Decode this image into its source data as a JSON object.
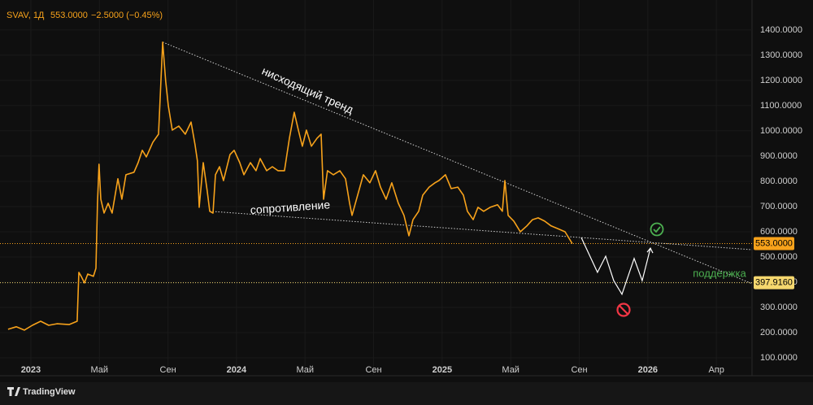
{
  "chart_data": {
    "type": "line",
    "header": {
      "symbol": "SVAV, 1Д",
      "close": "553.0000",
      "change": "−2.5000 (−0.45%)"
    },
    "x": [
      -1.33,
      -0.85,
      -0.38,
      0.09,
      0.57,
      1.04,
      1.52,
      2.23,
      2.7,
      2.8,
      2.94,
      3.13,
      3.32,
      3.65,
      3.8,
      3.89,
      3.98,
      4.08,
      4.27,
      4.51,
      4.74,
      5.08,
      5.31,
      5.55,
      6.02,
      6.26,
      6.5,
      6.74,
      7.12,
      7.45,
      7.69,
      7.87,
      8.02,
      8.25,
      8.63,
      9.01,
      9.35,
      9.58,
      9.72,
      9.82,
      10.06,
      10.29,
      10.44,
      10.63,
      10.77,
      11.01,
      11.24,
      11.62,
      11.86,
      12.19,
      12.43,
      12.81,
      13.14,
      13.38,
      13.76,
      14.09,
      14.42,
      14.8,
      15.09,
      15.37,
      15.61,
      15.84,
      16.08,
      16.37,
      16.7,
      16.94,
      17.08,
      17.31,
      17.65,
      18.03,
      18.36,
      18.6,
      18.74,
      19.07,
      19.4,
      19.78,
      20.11,
      20.4,
      20.73,
      21.06,
      21.44,
      21.77,
      22.06,
      22.3,
      22.63,
      22.87,
      23.24,
      23.58,
      23.81,
      24.19,
      24.53,
      24.91,
      25.24,
      25.47,
      25.81,
      26.09,
      26.42,
      26.8,
      27.23,
      27.51,
      27.66,
      27.85,
      28.18,
      28.56,
      28.94,
      29.27,
      29.6,
      29.98,
      30.36,
      30.83,
      31.17,
      31.59
    ],
    "series": [
      {
        "color": "#f7a21b",
        "values": [
          213,
          223,
          210,
          229,
          245,
          229,
          235,
          232,
          245,
          439,
          423,
          397,
          432,
          423,
          455,
          713,
          868,
          729,
          674,
          713,
          674,
          810,
          729,
          826,
          836,
          874,
          923,
          897,
          955,
          987,
          1352,
          1197,
          1100,
          1003,
          1019,
          987,
          1035,
          945,
          881,
          697,
          874,
          761,
          681,
          674,
          826,
          858,
          803,
          906,
          923,
          874,
          826,
          874,
          842,
          890,
          842,
          858,
          842,
          842,
          971,
          1074,
          1003,
          939,
          1003,
          939,
          971,
          987,
          729,
          842,
          826,
          842,
          810,
          713,
          665,
          745,
          826,
          794,
          842,
          777,
          729,
          794,
          713,
          665,
          584,
          648,
          681,
          745,
          777,
          794,
          803,
          826,
          771,
          777,
          745,
          681,
          648,
          697,
          681,
          697,
          707,
          681,
          803,
          665,
          642,
          600,
          623,
          648,
          655,
          642,
          623,
          610,
          600,
          553
        ]
      }
    ],
    "xlim": [
      -1.8,
      42.08
    ],
    "ylim": [
      29,
      1519
    ],
    "xticks": [
      {
        "value": 0,
        "label": "2023"
      },
      {
        "value": 4,
        "label": "Май"
      },
      {
        "value": 8,
        "label": "Сен"
      },
      {
        "value": 12,
        "label": "2024"
      },
      {
        "value": 16,
        "label": "Май"
      },
      {
        "value": 20,
        "label": "Сен"
      },
      {
        "value": 24,
        "label": "2025"
      },
      {
        "value": 28,
        "label": "Май"
      },
      {
        "value": 32,
        "label": "Сен"
      },
      {
        "value": 36,
        "label": "2026"
      },
      {
        "value": 40,
        "label": "Апр"
      }
    ],
    "yticks": [
      {
        "value": 100,
        "label": "100.0000"
      },
      {
        "value": 200,
        "label": "200.0000"
      },
      {
        "value": 300,
        "label": "300.0000"
      },
      {
        "value": 400,
        "label": "400.0000"
      },
      {
        "value": 500,
        "label": "500.0000"
      },
      {
        "value": 600,
        "label": "600.0000"
      },
      {
        "value": 700,
        "label": "700.0000"
      },
      {
        "value": 800,
        "label": "800.0000"
      },
      {
        "value": 900,
        "label": "900.0000"
      },
      {
        "value": 1000,
        "label": "1000.0000"
      },
      {
        "value": 1100,
        "label": "1100.0000"
      },
      {
        "value": 1200,
        "label": "1200.0000"
      },
      {
        "value": 1300,
        "label": "1300.0000"
      },
      {
        "value": 1400,
        "label": "1400.0000"
      }
    ],
    "hlines": [
      {
        "value": 553,
        "label": "553.0000",
        "color": "#f7a21b"
      },
      {
        "value": 397.916,
        "label": "397.9160",
        "color": "#f5d76e"
      }
    ],
    "trendlines": [
      {
        "x": [
          7.69,
          42.08
        ],
        "y": [
          1352,
          394
        ],
        "color": "#cfcfcf"
      },
      {
        "x": [
          10.44,
          42.08
        ],
        "y": [
          681,
          529
        ],
        "color": "#cfcfcf"
      }
    ],
    "projection": {
      "x": [
        32.12,
        33.06,
        33.54,
        34.01,
        34.49,
        35.2,
        35.67,
        36.15
      ],
      "y": [
        577,
        439,
        503,
        406,
        352,
        494,
        406,
        535
      ],
      "color": "#ffffff"
    },
    "annotations": [
      "нисходящий тренд",
      "сопротивление",
      "поддержка"
    ],
    "footer": "TradingView"
  }
}
